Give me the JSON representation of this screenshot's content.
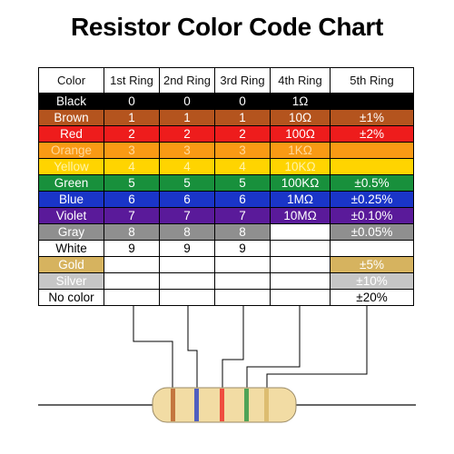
{
  "title": "Resistor Color Code Chart",
  "headers": [
    "Color",
    "1st Ring",
    "2nd Ring",
    "3rd Ring",
    "4th Ring",
    "5th Ring"
  ],
  "rows": [
    {
      "color": "Black",
      "bg": "#000000",
      "fg": "#ffffff",
      "ring1": "0",
      "ring2": "0",
      "ring3": "0",
      "ring4": "1Ω",
      "ring5": ""
    },
    {
      "color": "Brown",
      "bg": "#b4541e",
      "fg": "#ffffff",
      "ring1": "1",
      "ring2": "1",
      "ring3": "1",
      "ring4": "10Ω",
      "ring5": "±1%"
    },
    {
      "color": "Red",
      "bg": "#ee1c1c",
      "fg": "#ffffff",
      "ring1": "2",
      "ring2": "2",
      "ring3": "2",
      "ring4": "100Ω",
      "ring5": "±2%"
    },
    {
      "color": "Orange",
      "bg": "#f99a14",
      "fg": "#ffd89a",
      "ring1": "3",
      "ring2": "3",
      "ring3": "3",
      "ring4": "1KΩ",
      "ring5": ""
    },
    {
      "color": "Yellow",
      "bg": "#ffd400",
      "fg": "#fff3a8",
      "ring1": "4",
      "ring2": "4",
      "ring3": "4",
      "ring4": "10KΩ",
      "ring5": ""
    },
    {
      "color": "Green",
      "bg": "#18903c",
      "fg": "#ffffff",
      "ring1": "5",
      "ring2": "5",
      "ring3": "5",
      "ring4": "100KΩ",
      "ring5": "±0.5%"
    },
    {
      "color": "Blue",
      "bg": "#1a35c8",
      "fg": "#ffffff",
      "ring1": "6",
      "ring2": "6",
      "ring3": "6",
      "ring4": "1MΩ",
      "ring5": "±0.25%"
    },
    {
      "color": "Violet",
      "bg": "#5a1a9a",
      "fg": "#ffffff",
      "ring1": "7",
      "ring2": "7",
      "ring3": "7",
      "ring4": "10MΩ",
      "ring5": "±0.10%"
    },
    {
      "color": "Gray",
      "bg": "#8f8f8f",
      "fg": "#ffffff",
      "ring1": "8",
      "ring2": "8",
      "ring3": "8",
      "ring4": "",
      "ring5": "±0.05%"
    },
    {
      "color": "White",
      "bg": "#ffffff",
      "fg": "#000000",
      "ring1": "9",
      "ring2": "9",
      "ring3": "9",
      "ring4": "",
      "ring5": ""
    },
    {
      "color": "Gold",
      "bg": "#d6b35f",
      "fg": "#ffffff",
      "ring1": "",
      "ring2": "",
      "ring3": "",
      "ring4": "",
      "ring5": "±5%"
    },
    {
      "color": "Silver",
      "bg": "#c6c6c6",
      "fg": "#ffffff",
      "ring1": "",
      "ring2": "",
      "ring3": "",
      "ring4": "",
      "ring5": "±10%"
    },
    {
      "color": "No color",
      "bg": "#ffffff",
      "fg": "#000000",
      "ring1": "",
      "ring2": "",
      "ring3": "",
      "ring4": "",
      "ring5": "±20%"
    }
  ],
  "resistor": {
    "body_color": "#f2dca4",
    "band_colors": [
      "#b4541e",
      "#1a35c8",
      "#ee1c1c",
      "#18903c",
      "#d6b35f"
    ]
  }
}
